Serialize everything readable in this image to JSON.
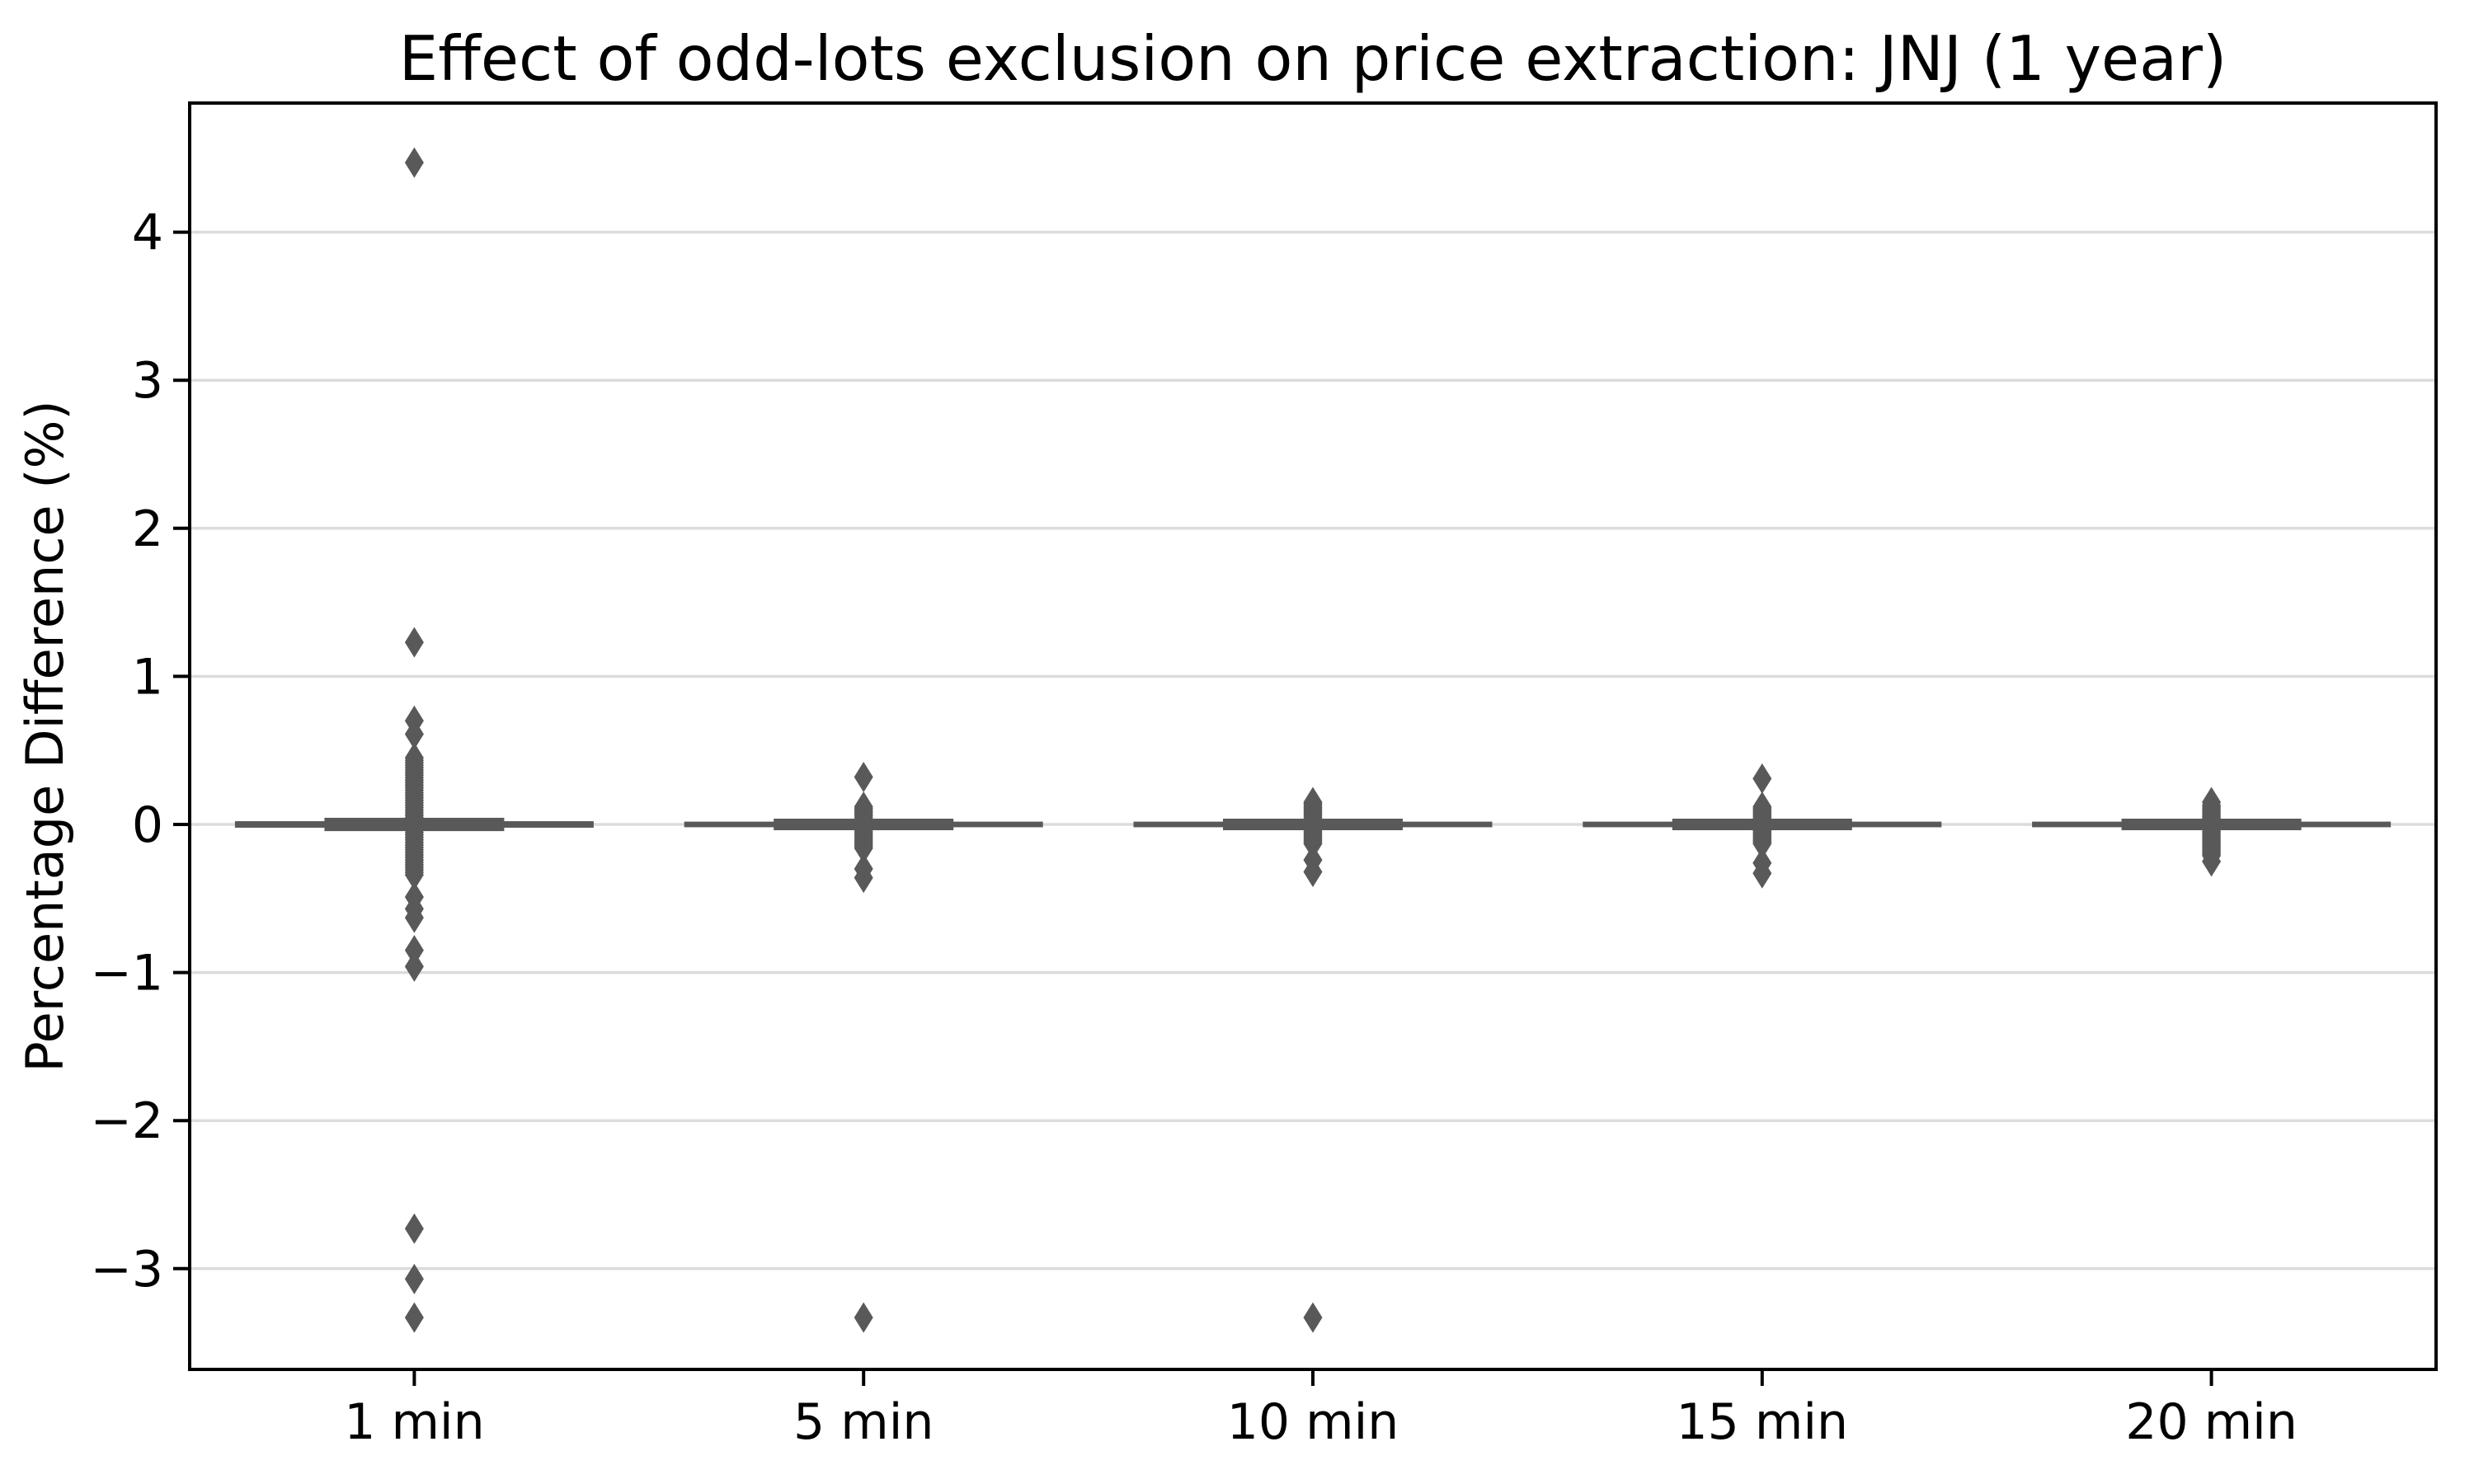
{
  "title": "Effect of odd-lots exclusion on price extraction: JNJ (1 year)",
  "colors": {
    "box": "#595959",
    "flier": "#595959",
    "grid": "#dcdcdc",
    "spine": "#000000",
    "text": "#000000",
    "background": "#ffffff"
  },
  "chart_data": {
    "type": "box",
    "title": "Effect of odd-lots exclusion on price extraction: JNJ (1 year)",
    "xlabel": "",
    "ylabel": "Percentage Difference (%)",
    "categories": [
      "1 min",
      "5 min",
      "10 min",
      "15 min",
      "20 min"
    ],
    "ylim": [
      -3.68,
      4.87
    ],
    "yticks": [
      4,
      3,
      2,
      1,
      0,
      -1,
      -2,
      -3
    ],
    "ytick_labels": [
      "4",
      "3",
      "2",
      "1",
      "0",
      "−1",
      "−2",
      "−3"
    ],
    "grid": true,
    "legend": false,
    "flier_marker": "thin-diamond",
    "series": [
      {
        "label": "1 min",
        "median": 0.0,
        "q1": -0.022,
        "q3": 0.022,
        "whisker_low": -0.045,
        "whisker_high": 0.045,
        "fliers": [
          4.47,
          1.23,
          0.7,
          0.61,
          -0.49,
          -0.57,
          -0.63,
          -0.85,
          -0.96,
          -2.73,
          -3.07,
          -3.33
        ],
        "fliers_dense": {
          "from": 0.45,
          "to": -0.34,
          "count": 48
        }
      },
      {
        "label": "5 min",
        "median": 0.0,
        "q1": -0.019,
        "q3": 0.019,
        "whisker_low": -0.039,
        "whisker_high": 0.039,
        "fliers": [
          0.32,
          -0.3,
          -0.36,
          -3.33
        ],
        "fliers_dense": {
          "from": 0.12,
          "to": -0.16,
          "count": 24
        }
      },
      {
        "label": "10 min",
        "median": 0.0,
        "q1": -0.019,
        "q3": 0.019,
        "whisker_low": -0.039,
        "whisker_high": 0.039,
        "fliers": [
          0.15,
          -0.24,
          -0.32,
          -3.33
        ],
        "fliers_dense": {
          "from": 0.14,
          "to": -0.13,
          "count": 24
        }
      },
      {
        "label": "15 min",
        "median": 0.0,
        "q1": -0.019,
        "q3": 0.019,
        "whisker_low": -0.039,
        "whisker_high": 0.039,
        "fliers": [
          0.31,
          -0.26,
          -0.33
        ],
        "fliers_dense": {
          "from": 0.12,
          "to": -0.13,
          "count": 24
        }
      },
      {
        "label": "20 min",
        "median": 0.0,
        "q1": -0.019,
        "q3": 0.019,
        "whisker_low": -0.039,
        "whisker_high": 0.039,
        "fliers": [
          0.15,
          -0.25
        ],
        "fliers_dense": {
          "from": 0.13,
          "to": -0.21,
          "count": 28
        }
      }
    ]
  }
}
